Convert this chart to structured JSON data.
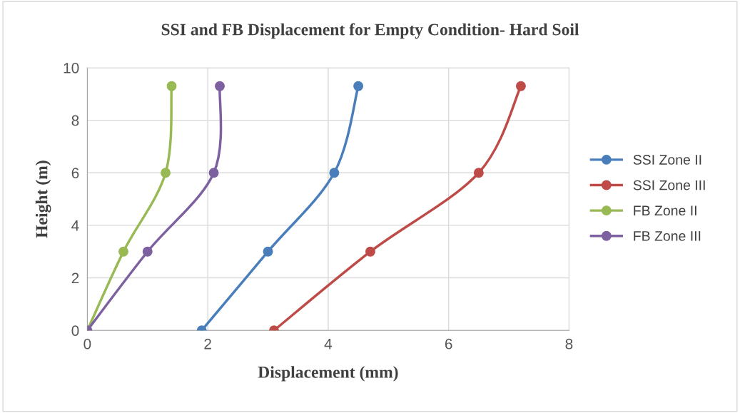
{
  "chart_data": {
    "type": "line",
    "title": "SSI and FB Displacement for Empty Condition- Hard Soil",
    "xlabel": "Displacement (mm)",
    "ylabel": "Height (m)",
    "series": [
      {
        "name": "SSI Zone II",
        "color": "#4a7ebb",
        "x": [
          1.9,
          3.0,
          4.1,
          4.5
        ],
        "values": [
          0,
          3,
          6,
          9.3
        ]
      },
      {
        "name": "SSI Zone III",
        "color": "#be4b48",
        "x": [
          3.1,
          4.7,
          6.5,
          7.2
        ],
        "values": [
          0,
          3,
          6,
          9.3
        ]
      },
      {
        "name": "FB Zone II",
        "color": "#98b954",
        "x": [
          0,
          0.6,
          1.3,
          1.4
        ],
        "values": [
          0,
          3,
          6,
          9.3
        ]
      },
      {
        "name": "FB Zone III",
        "color": "#7d60a0",
        "x": [
          0,
          1.0,
          2.1,
          2.2
        ],
        "values": [
          0,
          3,
          6,
          9.3
        ]
      }
    ],
    "xlim": [
      0,
      8
    ],
    "xticks": [
      0,
      2,
      4,
      6,
      8
    ],
    "ylim": [
      0,
      10
    ],
    "yticks": [
      0,
      2,
      4,
      6,
      8,
      10
    ],
    "grid": true,
    "legend": "right",
    "marker": "circle",
    "line_style": "solid"
  }
}
